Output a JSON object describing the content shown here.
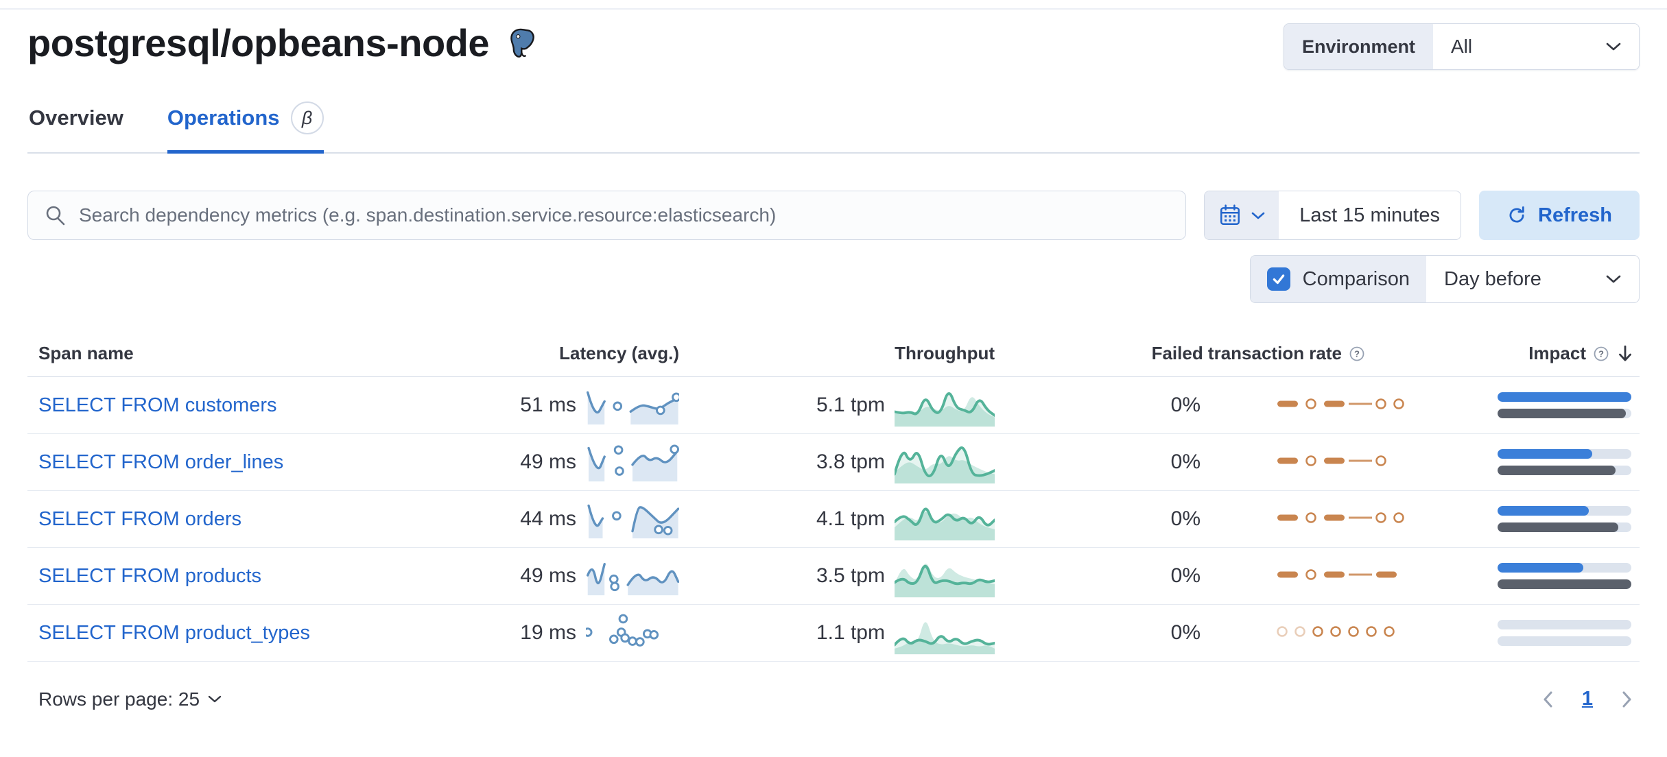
{
  "page": {
    "title": "postgresql/opbeans-node"
  },
  "environment_filter": {
    "label": "Environment",
    "value": "All"
  },
  "tabs": {
    "overview": "Overview",
    "operations": "Operations",
    "beta": "β"
  },
  "toolbar": {
    "search_placeholder": "Search dependency metrics (e.g. span.destination.service.resource:elasticsearch)",
    "time_range": "Last 15 minutes",
    "refresh_label": "Refresh",
    "comparison_label": "Comparison",
    "comparison_checked": true,
    "comparison_value": "Day before"
  },
  "table": {
    "headers": {
      "span_name": "Span name",
      "latency": "Latency (avg.)",
      "throughput": "Throughput",
      "failed_rate": "Failed transaction rate",
      "impact": "Impact"
    },
    "rows": [
      {
        "name": "SELECT FROM customers",
        "latency": "51 ms",
        "throughput": "5.1 tpm",
        "failed_rate": "0%",
        "impact_pct": 100,
        "impact_prev_pct": 96,
        "latency_spark": {
          "segments": [
            [
              [
                0.02,
                0.12
              ],
              [
                0.1,
                0.95
              ],
              [
                0.2,
                0.4
              ]
            ],
            [
              [
                0.48,
                0.72
              ],
              [
                0.58,
                0.5
              ],
              [
                0.68,
                0.56
              ],
              [
                0.78,
                0.66
              ],
              [
                0.88,
                0.45
              ],
              [
                0.99,
                0.3
              ]
            ]
          ],
          "dots": [
            [
              0.34,
              0.55
            ],
            [
              0.8,
              0.68
            ],
            [
              0.97,
              0.27
            ]
          ]
        },
        "throughput_spark": {
          "current": [
            0.35,
            0.3,
            0.35,
            0.25,
            0.8,
            0.35,
            0.3,
            1.0,
            0.45,
            0.4,
            0.3,
            0.75,
            0.4,
            0.25
          ],
          "previous": [
            0.3,
            0.25,
            0.4,
            0.3,
            0.5,
            0.45,
            0.35,
            0.55,
            0.4,
            0.35,
            0.85,
            0.5,
            0.3,
            0.2
          ]
        },
        "failed_spark": [
          "dash",
          "ring",
          "dash",
          "line",
          "ring",
          "ring"
        ]
      },
      {
        "name": "SELECT FROM order_lines",
        "latency": "49 ms",
        "throughput": "3.8 tpm",
        "failed_rate": "0%",
        "impact_pct": 71,
        "impact_prev_pct": 88,
        "latency_spark": {
          "segments": [
            [
              [
                0.03,
                0.08
              ],
              [
                0.12,
                0.92
              ],
              [
                0.2,
                0.35
              ]
            ],
            [
              [
                0.5,
                0.6
              ],
              [
                0.6,
                0.22
              ],
              [
                0.68,
                0.5
              ],
              [
                0.76,
                0.35
              ],
              [
                0.86,
                0.6
              ],
              [
                0.98,
                0.18
              ]
            ]
          ],
          "dots": [
            [
              0.35,
              0.14
            ],
            [
              0.36,
              0.8
            ],
            [
              0.95,
              0.12
            ]
          ]
        },
        "throughput_spark": {
          "current": [
            0.2,
            0.95,
            0.5,
            0.9,
            0.15,
            0.15,
            0.85,
            0.3,
            0.8,
            1.0,
            0.2,
            0.15,
            0.2,
            0.3
          ],
          "previous": [
            0.25,
            0.45,
            0.55,
            0.4,
            0.3,
            0.5,
            0.45,
            0.75,
            0.55,
            0.6,
            0.45,
            0.35,
            0.25,
            0.2
          ]
        },
        "failed_spark": [
          "dash",
          "ring",
          "dash",
          "line",
          "ring"
        ]
      },
      {
        "name": "SELECT FROM orders",
        "latency": "44 ms",
        "throughput": "4.1 tpm",
        "failed_rate": "0%",
        "impact_pct": 68,
        "impact_prev_pct": 90,
        "latency_spark": {
          "segments": [
            [
              [
                0.03,
                0.1
              ],
              [
                0.1,
                0.88
              ],
              [
                0.18,
                0.5
              ]
            ],
            [
              [
                0.5,
                0.9
              ],
              [
                0.55,
                0.2
              ],
              [
                0.6,
                0.12
              ],
              [
                0.72,
                0.45
              ],
              [
                0.82,
                0.72
              ],
              [
                0.99,
                0.2
              ]
            ]
          ],
          "dots": [
            [
              0.33,
              0.42
            ],
            [
              0.78,
              0.85
            ],
            [
              0.88,
              0.88
            ]
          ]
        },
        "throughput_spark": {
          "current": [
            0.45,
            0.65,
            0.5,
            0.3,
            0.95,
            0.4,
            0.5,
            0.7,
            0.45,
            0.6,
            0.35,
            0.65,
            0.3,
            0.5
          ],
          "previous": [
            0.3,
            0.5,
            0.6,
            0.45,
            0.8,
            0.5,
            0.4,
            0.65,
            0.7,
            0.5,
            0.6,
            0.4,
            0.3,
            0.25
          ]
        },
        "failed_spark": [
          "dash",
          "ring",
          "dash",
          "line",
          "ring",
          "ring"
        ]
      },
      {
        "name": "SELECT FROM products",
        "latency": "49 ms",
        "throughput": "3.5 tpm",
        "failed_rate": "0%",
        "impact_pct": 64,
        "impact_prev_pct": 100,
        "latency_spark": {
          "segments": [
            [
              [
                0.02,
                0.5
              ],
              [
                0.07,
                0.12
              ],
              [
                0.13,
                0.95
              ],
              [
                0.2,
                0.15
              ]
            ],
            [
              [
                0.45,
                0.8
              ],
              [
                0.55,
                0.35
              ],
              [
                0.63,
                0.72
              ],
              [
                0.73,
                0.5
              ],
              [
                0.83,
                0.82
              ],
              [
                0.92,
                0.25
              ],
              [
                0.99,
                0.7
              ]
            ]
          ],
          "dots": [
            [
              0.3,
              0.62
            ],
            [
              0.31,
              0.85
            ]
          ]
        },
        "throughput_spark": {
          "current": [
            0.35,
            0.5,
            0.3,
            0.35,
            0.95,
            0.3,
            0.4,
            0.4,
            0.3,
            0.35,
            0.3,
            0.45,
            0.35,
            0.4
          ],
          "previous": [
            0.3,
            0.85,
            0.5,
            0.4,
            1.0,
            0.5,
            0.45,
            0.8,
            0.6,
            0.5,
            0.45,
            0.4,
            0.35,
            0.3
          ]
        },
        "failed_spark": [
          "dash",
          "ring",
          "dash",
          "line",
          "dash"
        ]
      },
      {
        "name": "SELECT FROM product_types",
        "latency": "19 ms",
        "throughput": "1.1 tpm",
        "failed_rate": "0%",
        "impact_pct": 0,
        "impact_prev_pct": 0,
        "latency_spark": {
          "segments": [],
          "dots": [
            [
              0.02,
              0.5
            ],
            [
              0.4,
              0.08
            ],
            [
              0.3,
              0.72
            ],
            [
              0.38,
              0.5
            ],
            [
              0.42,
              0.68
            ],
            [
              0.5,
              0.78
            ],
            [
              0.58,
              0.8
            ],
            [
              0.66,
              0.55
            ],
            [
              0.73,
              0.58
            ]
          ]
        },
        "throughput_spark": {
          "current": [
            0.2,
            0.45,
            0.2,
            0.35,
            0.3,
            0.2,
            0.5,
            0.25,
            0.4,
            0.2,
            0.3,
            0.35,
            0.2,
            0.25
          ],
          "previous": [
            0.1,
            0.15,
            0.3,
            0.25,
            1.0,
            0.3,
            0.2,
            0.25,
            0.2,
            0.15,
            0.2,
            0.15,
            0.2,
            0.1
          ]
        },
        "failed_spark": [
          "ring-light",
          "ring-light",
          "ring",
          "ring",
          "ring",
          "ring",
          "ring"
        ]
      }
    ]
  },
  "footer": {
    "rows_per_page": "Rows per page: 25",
    "page": "1"
  },
  "colors": {
    "primary": "#2265CC",
    "latency_spark": "#6092C0",
    "latency_fill": "#DCE7F3",
    "throughput_spark": "#54B399",
    "throughput_area": "rgba(84,179,153,0.15)",
    "throughput_prev_area": "rgba(84,179,153,0.28)",
    "failed_spark": "#C9854F",
    "impact_bar": "#3B7FD9",
    "impact_prev_bar": "#5A606B",
    "impact_track": "#DCE3ED",
    "refresh_bg": "#D7E8F8",
    "form_label_bg": "#E9EDF5",
    "border": "#D3DAE6",
    "checkbox": "#3277D6"
  }
}
